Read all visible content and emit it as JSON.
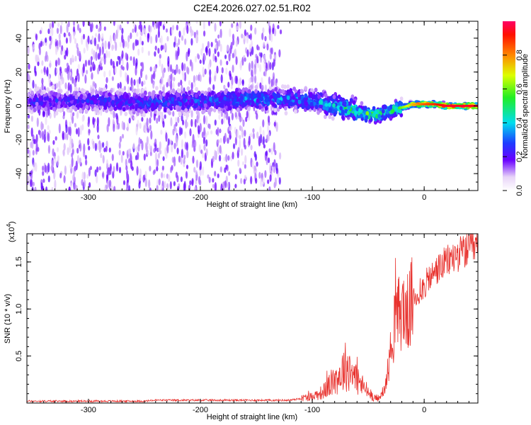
{
  "title": "C2E4.2026.027.02.51.R02",
  "top_panel": {
    "xlabel": "Height of straight line (km)",
    "ylabel": "Frequency (Hz)",
    "xticks": [
      "-300",
      "-200",
      "-100",
      "0"
    ],
    "yticks": [
      "-40",
      "-20",
      "0",
      "20",
      "40"
    ]
  },
  "colorbar": {
    "label": "Normalized spectral amplitude",
    "ticks": [
      "0.0",
      "0.2",
      "0.4",
      "0.6",
      "0.8"
    ]
  },
  "bottom_panel": {
    "xlabel": "Height of straight line (km)",
    "ylabel": "SNR (10 * v/v)",
    "multiplier_base": "(x10",
    "multiplier_exp": "4",
    "multiplier_close": ")",
    "xticks": [
      "-300",
      "-200",
      "-100",
      "0"
    ],
    "yticks": [
      "0.5",
      "1.0",
      "1.5"
    ]
  },
  "colors": {
    "snr_line": "#e8322e",
    "spectro_base": "#8a2be2"
  },
  "chart_data": [
    {
      "type": "heatmap",
      "title": "C2E4.2026.027.02.51.R02",
      "xlabel": "Height of straight line (km)",
      "ylabel": "Frequency (Hz)",
      "xlim": [
        -355,
        48
      ],
      "ylim": [
        -50,
        50
      ],
      "ridge": {
        "x": [
          -355,
          -300,
          -250,
          -200,
          -150,
          -120,
          -100,
          -80,
          -60,
          -50,
          -40,
          -30,
          -20,
          -10,
          0,
          10,
          20,
          48
        ],
        "frequency": [
          3,
          3,
          2,
          3,
          4,
          4,
          3,
          0,
          -3,
          -5,
          -5,
          -3,
          -1,
          1,
          1,
          1,
          0,
          0
        ],
        "amplitude": [
          0.25,
          0.25,
          0.3,
          0.3,
          0.35,
          0.35,
          0.35,
          0.45,
          0.5,
          0.55,
          0.5,
          0.5,
          0.6,
          0.75,
          0.85,
          0.9,
          0.95,
          0.95
        ]
      },
      "colorbar": {
        "label": "Normalized spectral amplitude",
        "range": [
          0,
          1
        ]
      }
    },
    {
      "type": "line",
      "xlabel": "Height of straight line (km)",
      "ylabel": "SNR (10 * v/v)",
      "y_multiplier": 10000,
      "xlim": [
        -355,
        48
      ],
      "ylim": [
        0,
        1.8
      ],
      "series": [
        {
          "name": "SNR",
          "x": [
            -355,
            -250,
            -240,
            -200,
            -150,
            -120,
            -100,
            -90,
            -80,
            -75,
            -70,
            -65,
            -60,
            -55,
            -50,
            -45,
            -40,
            -35,
            -30,
            -25,
            -20,
            -15,
            -10,
            -5,
            0,
            10,
            20,
            30,
            40,
            48
          ],
          "y": [
            0.02,
            0.02,
            0.03,
            0.03,
            0.03,
            0.03,
            0.07,
            0.12,
            0.25,
            0.3,
            0.4,
            0.35,
            0.25,
            0.18,
            0.12,
            0.06,
            0.05,
            0.15,
            0.55,
            0.9,
            1.0,
            0.95,
            1.1,
            1.15,
            1.25,
            1.4,
            1.5,
            1.58,
            1.63,
            1.65
          ]
        }
      ]
    }
  ]
}
